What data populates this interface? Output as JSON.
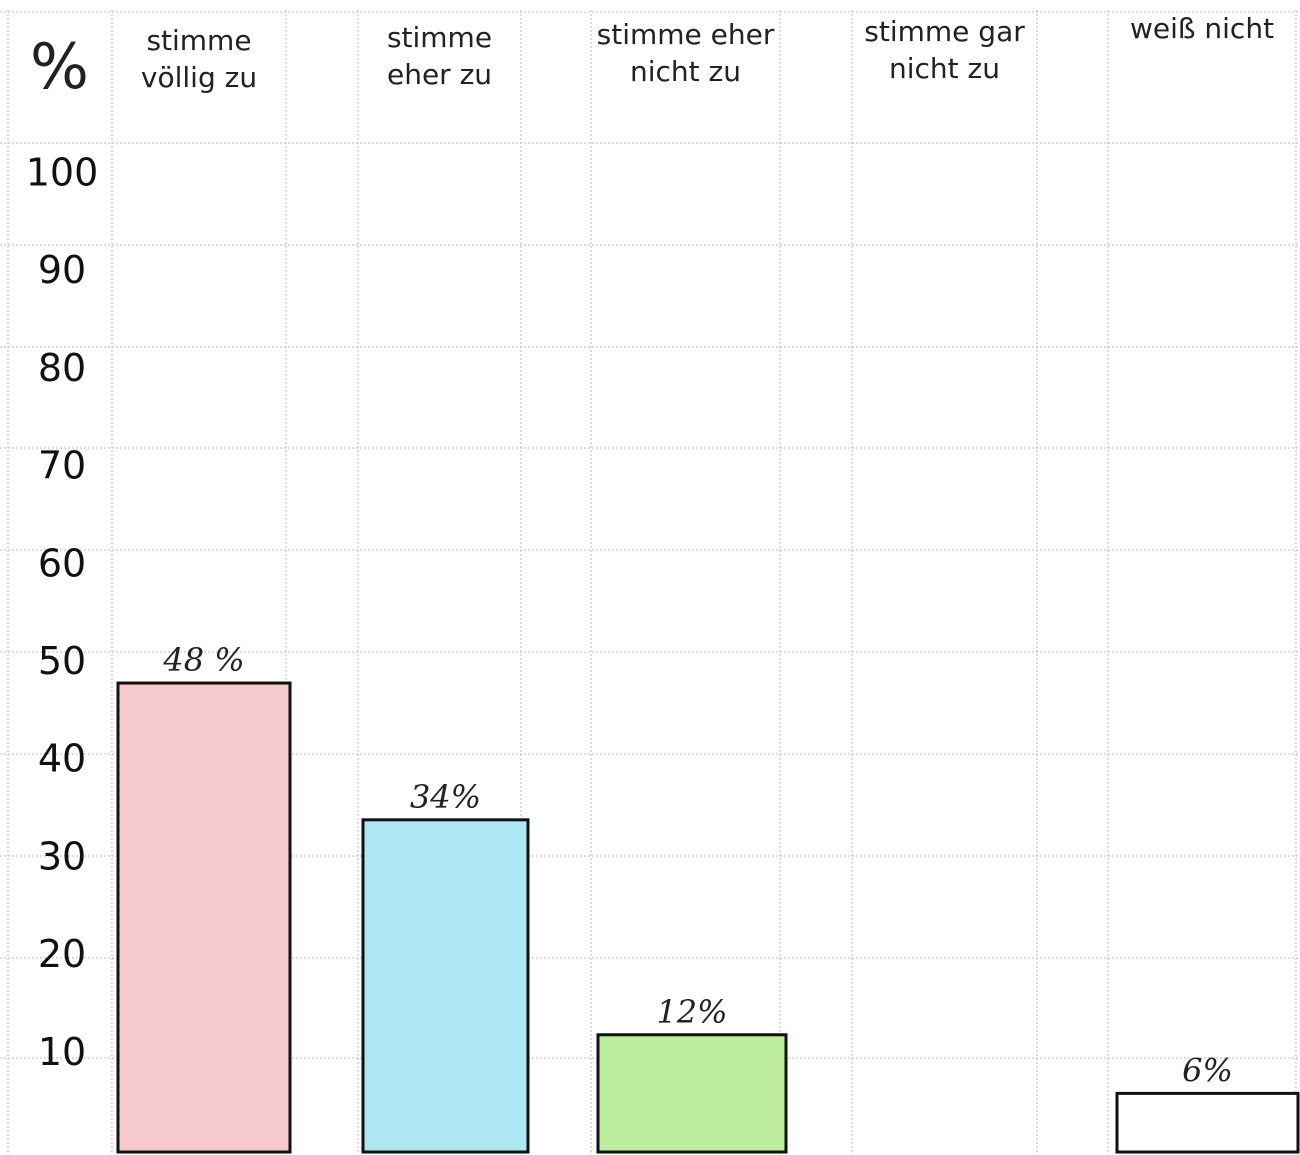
{
  "chart_data": {
    "type": "bar",
    "ylabel": "%",
    "categories": [
      "stimme völlig zu",
      "stimme eher zu",
      "stimme eher nicht zu",
      "stimme gar nicht zu",
      "weiß nicht"
    ],
    "values": [
      48,
      34,
      12,
      null,
      6
    ],
    "value_labels": [
      "48 %",
      "34%",
      "12%",
      null,
      "6%"
    ],
    "colors": [
      "#f6c9cc",
      "#ade8f2",
      "#bdee9e",
      null,
      "#ffffff"
    ],
    "ylim": [
      0,
      100
    ],
    "yticks": [
      10,
      20,
      30,
      40,
      50,
      60,
      70,
      80,
      90,
      100
    ],
    "grid": true
  }
}
